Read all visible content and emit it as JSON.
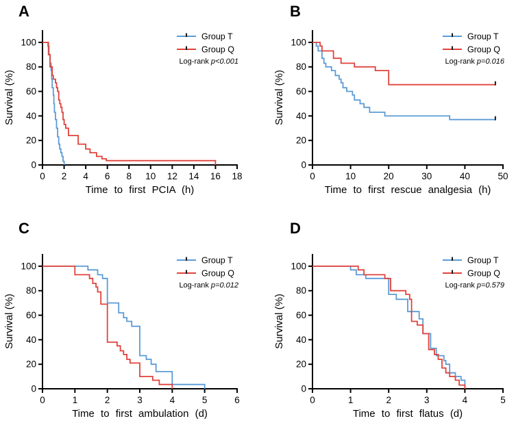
{
  "figure": {
    "description": "Four Kaplan-Meier survival panels comparing Group T and Group Q",
    "group_t_color": "#5B9BD5",
    "group_q_color": "#E0423B",
    "censor_tick_color": "#1A1A1A",
    "axis_color": "#000000"
  },
  "chart_data": [
    {
      "panel": "A",
      "type": "line",
      "subtype": "kaplan-meier-step",
      "title": "",
      "xlabel": "Time to first PCIA (h)",
      "ylabel": "Survival (%)",
      "xlim": [
        0,
        18
      ],
      "ylim": [
        0,
        100
      ],
      "xticks": [
        0,
        2,
        4,
        6,
        8,
        10,
        12,
        14,
        16,
        18
      ],
      "yticks": [
        0,
        20,
        40,
        60,
        80,
        100
      ],
      "legend_position": "top-right",
      "logrank": {
        "prefix": "Log-rank ",
        "p": "p<0.001"
      },
      "series": [
        {
          "name": "Group T",
          "color": "#5B9BD5",
          "censors": [],
          "steps": [
            [
              0,
              100
            ],
            [
              0.5,
              97
            ],
            [
              0.6,
              90
            ],
            [
              0.7,
              83
            ],
            [
              0.8,
              77
            ],
            [
              0.85,
              70
            ],
            [
              0.9,
              63
            ],
            [
              1,
              57
            ],
            [
              1.05,
              50
            ],
            [
              1.1,
              43
            ],
            [
              1.2,
              37
            ],
            [
              1.3,
              30
            ],
            [
              1.4,
              23
            ],
            [
              1.5,
              17
            ],
            [
              1.6,
              13
            ],
            [
              1.7,
              10
            ],
            [
              1.8,
              7
            ],
            [
              1.9,
              3
            ],
            [
              2,
              0
            ]
          ]
        },
        {
          "name": "Group Q",
          "color": "#E0423B",
          "censors": [],
          "steps": [
            [
              0,
              100
            ],
            [
              0.55,
              90
            ],
            [
              0.7,
              80
            ],
            [
              0.9,
              73
            ],
            [
              1,
              70
            ],
            [
              1.2,
              67
            ],
            [
              1.3,
              63
            ],
            [
              1.4,
              60
            ],
            [
              1.5,
              53
            ],
            [
              1.6,
              50
            ],
            [
              1.7,
              47
            ],
            [
              1.8,
              43
            ],
            [
              1.9,
              37
            ],
            [
              2,
              33
            ],
            [
              2.15,
              30
            ],
            [
              2.4,
              24
            ],
            [
              3.3,
              17
            ],
            [
              4,
              13
            ],
            [
              4.4,
              10
            ],
            [
              5,
              7
            ],
            [
              5.5,
              5
            ],
            [
              5.9,
              3.5
            ],
            [
              16,
              0
            ]
          ]
        }
      ]
    },
    {
      "panel": "B",
      "type": "line",
      "subtype": "kaplan-meier-step",
      "title": "",
      "xlabel": "Time to first rescue analgesia (h)",
      "ylabel": "Survival (%)",
      "xlim": [
        0,
        50
      ],
      "ylim": [
        0,
        100
      ],
      "xticks": [
        0,
        10,
        20,
        30,
        40,
        50
      ],
      "yticks": [
        0,
        20,
        40,
        60,
        80,
        100
      ],
      "legend_position": "top-right",
      "logrank": {
        "prefix": "Log-rank ",
        "p": "p=0.016"
      },
      "series": [
        {
          "name": "Group T",
          "color": "#5B9BD5",
          "censors": [
            [
              48,
              37
            ]
          ],
          "steps": [
            [
              0,
              100
            ],
            [
              1,
              97
            ],
            [
              1.5,
              93
            ],
            [
              2.5,
              87
            ],
            [
              3,
              83
            ],
            [
              3.5,
              80
            ],
            [
              5,
              77
            ],
            [
              6,
              73
            ],
            [
              7,
              70
            ],
            [
              7.5,
              67
            ],
            [
              8,
              63
            ],
            [
              9,
              60
            ],
            [
              10.5,
              57
            ],
            [
              11,
              53
            ],
            [
              12.5,
              50
            ],
            [
              13.5,
              47
            ],
            [
              15,
              43
            ],
            [
              19,
              40
            ],
            [
              36,
              37
            ],
            [
              48,
              37
            ]
          ]
        },
        {
          "name": "Group Q",
          "color": "#E0423B",
          "censors": [
            [
              48,
              65.5
            ]
          ],
          "steps": [
            [
              0,
              100
            ],
            [
              2,
              97
            ],
            [
              2.5,
              93
            ],
            [
              5.5,
              87
            ],
            [
              7.5,
              83
            ],
            [
              11,
              80
            ],
            [
              16.5,
              77
            ],
            [
              20,
              65.5
            ],
            [
              48,
              65.5
            ]
          ]
        }
      ]
    },
    {
      "panel": "C",
      "type": "line",
      "subtype": "kaplan-meier-step",
      "title": "",
      "xlabel": "Time to first ambulation (d)",
      "ylabel": "Survival (%)",
      "xlim": [
        0,
        6
      ],
      "ylim": [
        0,
        100
      ],
      "xticks": [
        0,
        1,
        2,
        3,
        4,
        5,
        6
      ],
      "yticks": [
        0,
        20,
        40,
        60,
        80,
        100
      ],
      "legend_position": "top-right",
      "logrank": {
        "prefix": "Log-rank ",
        "p": "p=0.012"
      },
      "series": [
        {
          "name": "Group T",
          "color": "#5B9BD5",
          "censors": [],
          "steps": [
            [
              0,
              100
            ],
            [
              1.4,
              97
            ],
            [
              1.7,
              93
            ],
            [
              1.85,
              90
            ],
            [
              2,
              70
            ],
            [
              2.35,
              62
            ],
            [
              2.5,
              58
            ],
            [
              2.6,
              55
            ],
            [
              2.75,
              51
            ],
            [
              3,
              27
            ],
            [
              3.2,
              24
            ],
            [
              3.35,
              20
            ],
            [
              3.5,
              14
            ],
            [
              4,
              3.5
            ],
            [
              5,
              0
            ]
          ]
        },
        {
          "name": "Group Q",
          "color": "#E0423B",
          "censors": [],
          "steps": [
            [
              0,
              100
            ],
            [
              1,
              93
            ],
            [
              1.45,
              90
            ],
            [
              1.55,
              86
            ],
            [
              1.65,
              83
            ],
            [
              1.7,
              79
            ],
            [
              1.8,
              69
            ],
            [
              2,
              38
            ],
            [
              2.3,
              35
            ],
            [
              2.4,
              31
            ],
            [
              2.5,
              28
            ],
            [
              2.6,
              24
            ],
            [
              2.7,
              21
            ],
            [
              3,
              10
            ],
            [
              3.4,
              7
            ],
            [
              3.6,
              3.5
            ],
            [
              4,
              0
            ]
          ]
        }
      ]
    },
    {
      "panel": "D",
      "type": "line",
      "subtype": "kaplan-meier-step",
      "title": "",
      "xlabel": "Time to first flatus (d)",
      "ylabel": "Survival (%)",
      "xlim": [
        0,
        5
      ],
      "ylim": [
        0,
        100
      ],
      "xticks": [
        0,
        1,
        2,
        3,
        4,
        5
      ],
      "yticks": [
        0,
        20,
        40,
        60,
        80,
        100
      ],
      "legend_position": "top-right",
      "logrank": {
        "prefix": "Log-rank ",
        "p": "p=0.579"
      },
      "series": [
        {
          "name": "Group T",
          "color": "#5B9BD5",
          "censors": [],
          "steps": [
            [
              0,
              100
            ],
            [
              1,
              97
            ],
            [
              1.15,
              93
            ],
            [
              1.4,
              90
            ],
            [
              2,
              77
            ],
            [
              2.2,
              73
            ],
            [
              2.5,
              63
            ],
            [
              2.8,
              57
            ],
            [
              2.9,
              45
            ],
            [
              3.1,
              33
            ],
            [
              3.25,
              27
            ],
            [
              3.45,
              23
            ],
            [
              3.5,
              20
            ],
            [
              3.6,
              13
            ],
            [
              3.75,
              10
            ],
            [
              3.9,
              7
            ],
            [
              4,
              0
            ]
          ]
        },
        {
          "name": "Group Q",
          "color": "#E0423B",
          "censors": [],
          "steps": [
            [
              0,
              100
            ],
            [
              1.2,
              97
            ],
            [
              1.35,
              93
            ],
            [
              1.9,
              90
            ],
            [
              2.05,
              80
            ],
            [
              2.45,
              77
            ],
            [
              2.55,
              73
            ],
            [
              2.6,
              55
            ],
            [
              2.75,
              52
            ],
            [
              2.9,
              45
            ],
            [
              3.05,
              32
            ],
            [
              3.2,
              28
            ],
            [
              3.3,
              24
            ],
            [
              3.4,
              17
            ],
            [
              3.5,
              13
            ],
            [
              3.6,
              10
            ],
            [
              3.75,
              7
            ],
            [
              3.85,
              3
            ],
            [
              4,
              0
            ]
          ]
        }
      ]
    }
  ]
}
